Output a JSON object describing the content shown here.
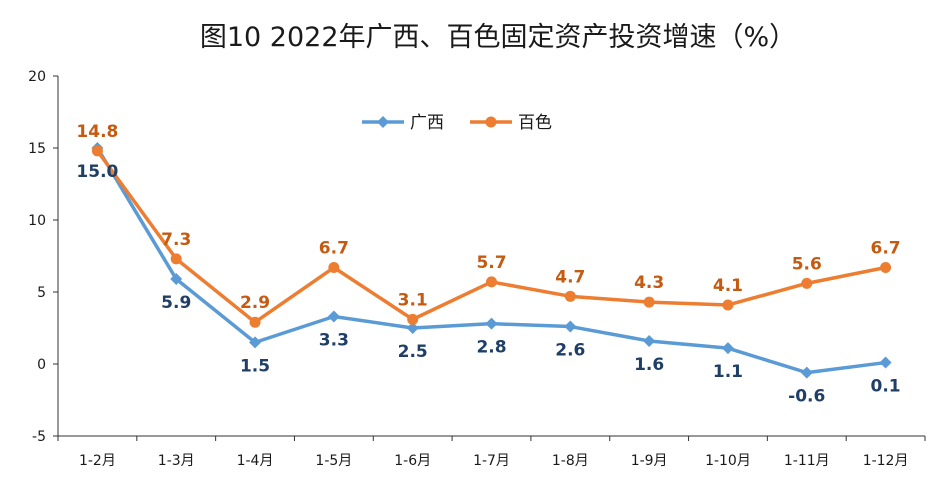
{
  "chart_data": {
    "type": "line",
    "title": "图10  2022年广西、百色固定资产投资增速（%）",
    "xlabel": "",
    "ylabel": "",
    "categories": [
      "1-2月",
      "1-3月",
      "1-4月",
      "1-5月",
      "1-6月",
      "1-7月",
      "1-8月",
      "1-9月",
      "1-10月",
      "1-11月",
      "1-12月"
    ],
    "ylim": [
      -5,
      20
    ],
    "yticks": [
      -5,
      0,
      5,
      10,
      15,
      20
    ],
    "grid": false,
    "legend": {
      "position": "top-center"
    },
    "series": [
      {
        "name": "广西",
        "color": "#5b9bd5",
        "label_color": "#1f3f66",
        "marker": "diamond",
        "label_position": "below",
        "values": [
          15.0,
          5.9,
          1.5,
          3.3,
          2.5,
          2.8,
          2.6,
          1.6,
          1.1,
          -0.6,
          0.1
        ],
        "labels": [
          "15.0",
          "5.9",
          "1.5",
          "3.3",
          "2.5",
          "2.8",
          "2.6",
          "1.6",
          "1.1",
          "-0.6",
          "0.1"
        ]
      },
      {
        "name": "百色",
        "color": "#ed7d31",
        "label_color": "#c55a11",
        "marker": "circle",
        "label_position": "above",
        "values": [
          14.8,
          7.3,
          2.9,
          6.7,
          3.1,
          5.7,
          4.7,
          4.3,
          4.1,
          5.6,
          6.7
        ],
        "labels": [
          "14.8",
          "7.3",
          "2.9",
          "6.7",
          "3.1",
          "5.7",
          "4.7",
          "4.3",
          "4.1",
          "5.6",
          "6.7"
        ]
      }
    ]
  }
}
